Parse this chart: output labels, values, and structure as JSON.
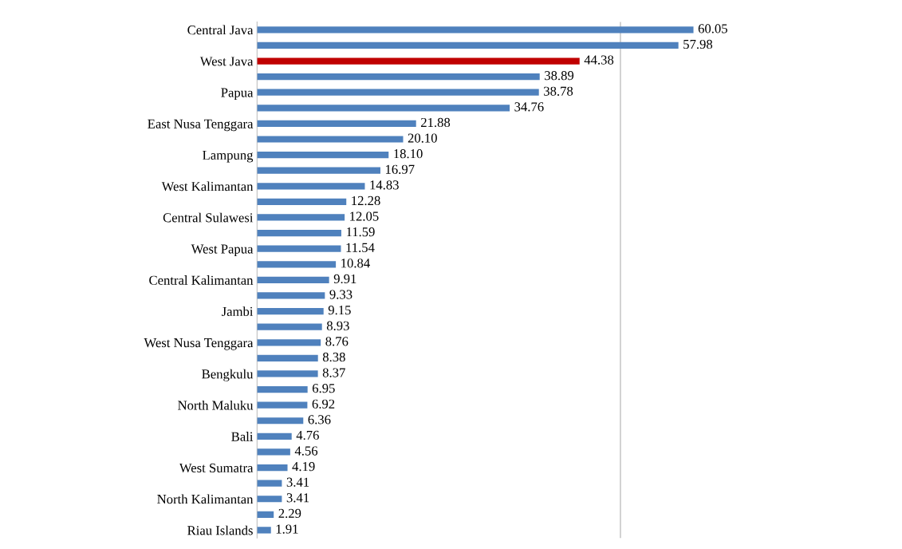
{
  "chart_data": {
    "type": "bar",
    "orientation": "horizontal",
    "categories": [
      "Central Java",
      null,
      "West Java",
      null,
      "Papua",
      null,
      "East Nusa Tenggara",
      null,
      "Lampung",
      null,
      "West Kalimantan",
      null,
      "Central Sulawesi",
      null,
      "West Papua",
      null,
      "Central Kalimantan",
      null,
      "Jambi",
      null,
      "West Nusa Tenggara",
      null,
      "Bengkulu",
      null,
      "North Maluku",
      null,
      "Bali",
      null,
      "West Sumatra",
      null,
      "North Kalimantan",
      null,
      "Riau Islands"
    ],
    "values": [
      60.05,
      57.98,
      44.38,
      38.89,
      38.78,
      34.76,
      21.88,
      20.1,
      18.1,
      16.97,
      14.83,
      12.28,
      12.05,
      11.59,
      11.54,
      10.84,
      9.91,
      9.33,
      9.15,
      8.93,
      8.76,
      8.38,
      8.37,
      6.95,
      6.92,
      6.36,
      4.76,
      4.56,
      4.19,
      3.41,
      3.41,
      2.29,
      1.91
    ],
    "value_labels": [
      "60.05",
      "57.98",
      "44.38",
      "38.89",
      "38.78",
      "34.76",
      "21.88",
      "20.10",
      "18.10",
      "16.97",
      "14.83",
      "12.28",
      "12.05",
      "11.59",
      "11.54",
      "10.84",
      "9.91",
      "9.33",
      "9.15",
      "8.93",
      "8.76",
      "8.38",
      "8.37",
      "6.95",
      "6.92",
      "6.36",
      "4.76",
      "4.56",
      "4.19",
      "3.41",
      "3.41",
      "2.29",
      "1.91"
    ],
    "colors": [
      "#4f81bd",
      "#4f81bd",
      "#c00000",
      "#4f81bd",
      "#4f81bd",
      "#4f81bd",
      "#4f81bd",
      "#4f81bd",
      "#4f81bd",
      "#4f81bd",
      "#4f81bd",
      "#4f81bd",
      "#4f81bd",
      "#4f81bd",
      "#4f81bd",
      "#4f81bd",
      "#4f81bd",
      "#4f81bd",
      "#4f81bd",
      "#4f81bd",
      "#4f81bd",
      "#4f81bd",
      "#4f81bd",
      "#4f81bd",
      "#4f81bd",
      "#4f81bd",
      "#4f81bd",
      "#4f81bd",
      "#4f81bd",
      "#4f81bd",
      "#4f81bd",
      "#4f81bd",
      "#4f81bd"
    ],
    "ref_lines": [
      {
        "axis": "x",
        "value": 50,
        "color": "#bfbfbf"
      }
    ],
    "tick_labels": "y"
  }
}
